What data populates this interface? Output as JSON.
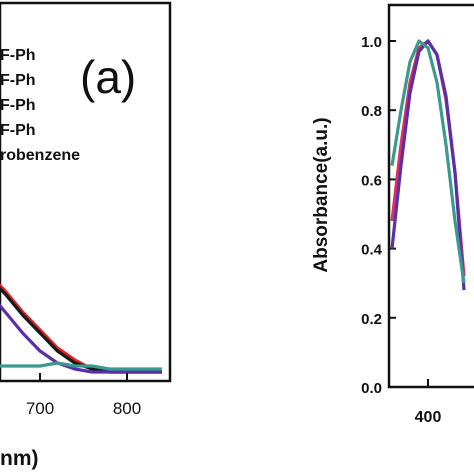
{
  "chart_data": [
    {
      "panel": "left",
      "type": "line",
      "panel_label": "(a)",
      "title": "",
      "xlabel": "nm)",
      "ylabel": "",
      "xlim": [
        570,
        840
      ],
      "x_ticks": [
        700,
        800
      ],
      "grid": false,
      "legend_position": "top-left",
      "legend_entries": [
        "F-Ph",
        "F-Ph",
        "F-Ph",
        "F-Ph",
        "robenzene"
      ],
      "series": [
        {
          "color": "#e02020",
          "x": [
            570,
            580,
            600,
            620,
            640,
            660,
            680,
            700,
            720,
            740,
            760,
            780,
            800,
            820,
            840
          ],
          "y": [
            0.42,
            0.43,
            0.42,
            0.4,
            0.36,
            0.3,
            0.23,
            0.17,
            0.11,
            0.07,
            0.04,
            0.03,
            0.03,
            0.03,
            0.03
          ]
        },
        {
          "color": "#1a1a1a",
          "x": [
            570,
            580,
            600,
            620,
            640,
            660,
            680,
            700,
            720,
            740,
            760,
            780,
            800,
            820,
            840
          ],
          "y": [
            0.41,
            0.42,
            0.41,
            0.39,
            0.35,
            0.29,
            0.22,
            0.16,
            0.1,
            0.06,
            0.04,
            0.03,
            0.03,
            0.03,
            0.03
          ]
        },
        {
          "color": "#5a30a8",
          "x": [
            570,
            580,
            600,
            620,
            640,
            660,
            680,
            700,
            720,
            740,
            760,
            780,
            800,
            820,
            840
          ],
          "y": [
            0.4,
            0.4,
            0.38,
            0.35,
            0.3,
            0.23,
            0.16,
            0.1,
            0.06,
            0.04,
            0.03,
            0.03,
            0.03,
            0.03,
            0.03
          ]
        },
        {
          "color": "#3a9a8e",
          "x": [
            570,
            600,
            640,
            680,
            700,
            720,
            740,
            760,
            780,
            800,
            820,
            840
          ],
          "y": [
            0.07,
            0.06,
            0.05,
            0.05,
            0.05,
            0.06,
            0.05,
            0.05,
            0.04,
            0.04,
            0.04,
            0.04
          ]
        }
      ]
    },
    {
      "panel": "right",
      "type": "line",
      "title": "",
      "xlabel": "",
      "ylabel": "Absorbance(a.u.)",
      "ylim": [
        0.0,
        1.1
      ],
      "y_ticks": [
        "0.0",
        "0.2",
        "0.4",
        "0.6",
        "0.8",
        "1.0"
      ],
      "x_ticks": [
        400
      ],
      "grid": false,
      "series": [
        {
          "color": "#e03060",
          "x": [
            360,
            370,
            380,
            390,
            400,
            410,
            420,
            430,
            440
          ],
          "y": [
            0.48,
            0.7,
            0.88,
            0.98,
            1.0,
            0.96,
            0.83,
            0.62,
            0.32
          ]
        },
        {
          "color": "#5a30a8",
          "x": [
            360,
            370,
            380,
            390,
            400,
            410,
            420,
            430,
            440
          ],
          "y": [
            0.4,
            0.64,
            0.85,
            0.97,
            1.0,
            0.96,
            0.84,
            0.62,
            0.28
          ]
        },
        {
          "color": "#3a9a8e",
          "x": [
            360,
            370,
            380,
            390,
            400,
            410,
            420,
            430,
            440
          ],
          "y": [
            0.64,
            0.8,
            0.94,
            1.0,
            0.98,
            0.88,
            0.7,
            0.48,
            0.3
          ]
        }
      ]
    }
  ]
}
